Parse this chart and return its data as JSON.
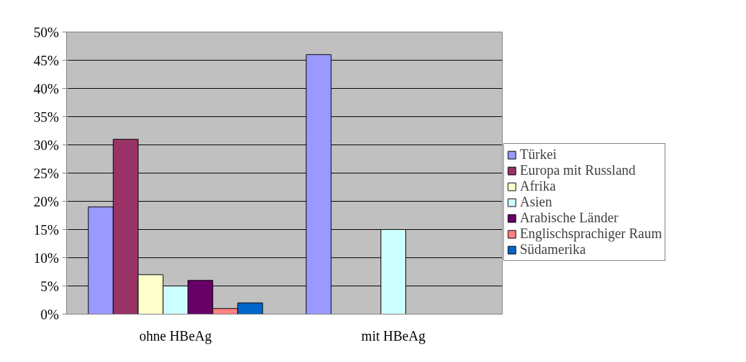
{
  "chart_data": {
    "type": "bar",
    "categories": [
      "ohne HBeAg",
      "mit HBeAg"
    ],
    "series": [
      {
        "name": "Türkei",
        "color": "#9999ff",
        "values": [
          19,
          46
        ]
      },
      {
        "name": "Europa mit Russland",
        "color": "#993366",
        "values": [
          31,
          null
        ]
      },
      {
        "name": "Afrika",
        "color": "#ffffcc",
        "values": [
          7,
          null
        ]
      },
      {
        "name": "Asien",
        "color": "#ccffff",
        "values": [
          5,
          15
        ]
      },
      {
        "name": "Arabische Länder",
        "color": "#660066",
        "values": [
          6,
          null
        ]
      },
      {
        "name": "Englischsprachiger Raum",
        "color": "#ff8080",
        "values": [
          1,
          null
        ]
      },
      {
        "name": "Südamerika",
        "color": "#0066cc",
        "values": [
          2,
          null
        ]
      }
    ],
    "ylim": [
      0,
      50
    ],
    "yticks": [
      {
        "value": 0,
        "label": "0%"
      },
      {
        "value": 5,
        "label": "5%"
      },
      {
        "value": 10,
        "label": "10%"
      },
      {
        "value": 15,
        "label": "15%"
      },
      {
        "value": 20,
        "label": "20%"
      },
      {
        "value": 25,
        "label": "25%"
      },
      {
        "value": 30,
        "label": "30%"
      },
      {
        "value": 35,
        "label": "35%"
      },
      {
        "value": 40,
        "label": "40%"
      },
      {
        "value": 45,
        "label": "45%"
      },
      {
        "value": 50,
        "label": "50%"
      }
    ],
    "grid": "y",
    "legend": "right"
  }
}
